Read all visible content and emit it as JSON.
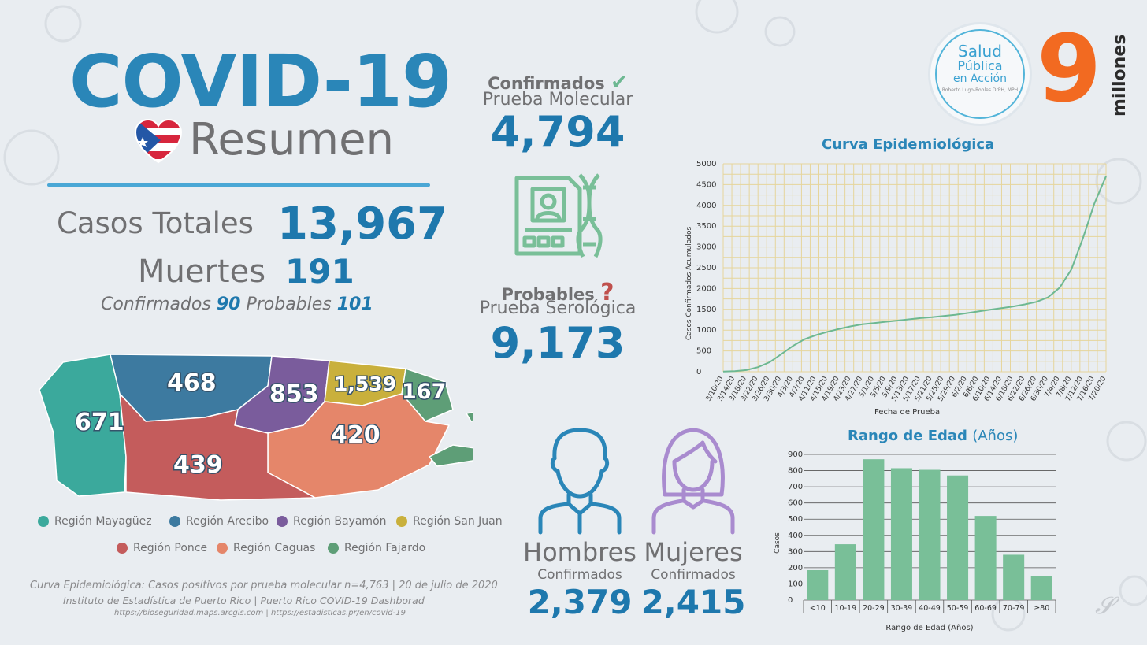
{
  "header": {
    "title": "COVID-19",
    "subtitle": "Resumen"
  },
  "totals": {
    "casos_label": "Casos Totales",
    "casos_value": "13,967",
    "muertes_label": "Muertes",
    "muertes_value": "191",
    "confirmados_label": "Confirmados",
    "confirmados_value": "90",
    "probables_label": "Probables",
    "probables_value": "101"
  },
  "molecular": {
    "label": "Confirmados",
    "test": "Prueba Molecular",
    "value": "4,794",
    "icon": "check-icon"
  },
  "serologica": {
    "label": "Probables",
    "test": "Prueba Serológica",
    "value": "9,173",
    "icon": "question-icon"
  },
  "gender": {
    "men": {
      "title": "Hombres",
      "sub": "Confirmados",
      "value": "2,379",
      "color": "#2a86b8"
    },
    "women": {
      "title": "Mujeres",
      "sub": "Confirmados",
      "value": "2,415",
      "color": "#a98bcf"
    }
  },
  "map": {
    "regions": [
      {
        "name": "Región Mayagüez",
        "value": "671",
        "color": "#3ba99c"
      },
      {
        "name": "Región Arecibo",
        "value": "468",
        "color": "#3d7aa0"
      },
      {
        "name": "Región Bayamón",
        "value": "853",
        "color": "#7a5c9c"
      },
      {
        "name": "Región San Juan",
        "value": "1,539",
        "color": "#c9b03c"
      },
      {
        "name": "Región Ponce",
        "value": "439",
        "color": "#c45c5c"
      },
      {
        "name": "Región Caguas",
        "value": "420",
        "color": "#e5866a"
      },
      {
        "name": "Región Fajardo",
        "value": "167",
        "color": "#5e9e77"
      }
    ]
  },
  "footer": {
    "line1": "Curva Epidemiológica: Casos positivos por prueba molecular n=4,763 | 20 de julio de 2020",
    "line2": "Instituto de Estadística de Puerto Rico | Puerto Rico COVID-19 Dashborad",
    "line3": "https://bioseguridad.maps.arcgis.com | https://estadisticas.pr/en/covid-19"
  },
  "logo": {
    "l1": "Salud",
    "l2": "Pública",
    "l3": "en Acción",
    "l4": "Roberto Lugo-Robles DrPH, MPH",
    "number": "9",
    "word": "millones"
  },
  "chart_data": [
    {
      "type": "line",
      "title": "Curva Epidemiológica",
      "xlabel": "Fecha de Prueba",
      "ylabel": "Casos Confirmados Acumulados",
      "ylim": [
        0,
        5000
      ],
      "yticks": [
        0,
        500,
        1000,
        1500,
        2000,
        2500,
        3000,
        3500,
        4000,
        4500,
        5000
      ],
      "grid": true,
      "line_color": "#6db892",
      "x": [
        "3/10/20",
        "3/14/20",
        "3/18/20",
        "3/22/20",
        "3/26/20",
        "3/30/20",
        "4/3/20",
        "4/7/20",
        "4/11/20",
        "4/15/20",
        "4/19/20",
        "4/23/20",
        "4/27/20",
        "5/1/20",
        "5/5/20",
        "5/9/20",
        "5/13/20",
        "5/17/20",
        "5/21/20",
        "5/25/20",
        "5/29/20",
        "6/2/20",
        "6/6/20",
        "6/10/20",
        "6/14/20",
        "6/18/20",
        "6/22/20",
        "6/26/20",
        "6/30/20",
        "7/4/20",
        "7/8/20",
        "7/12/20",
        "7/16/20",
        "7/20/20"
      ],
      "values": [
        5,
        15,
        40,
        110,
        230,
        420,
        620,
        780,
        880,
        960,
        1030,
        1090,
        1140,
        1170,
        1200,
        1230,
        1260,
        1290,
        1310,
        1340,
        1370,
        1410,
        1450,
        1490,
        1530,
        1570,
        1620,
        1680,
        1790,
        2020,
        2450,
        3200,
        4050,
        4700
      ]
    },
    {
      "type": "bar",
      "title": "Rango de Edad",
      "title_suffix": "(Años)",
      "xlabel": "Rango de Edad (Años)",
      "ylabel": "Casos",
      "ylim": [
        0,
        900
      ],
      "yticks": [
        0,
        100,
        200,
        300,
        400,
        500,
        600,
        700,
        800,
        900
      ],
      "bar_color": "#79bf98",
      "categories": [
        "<10",
        "10-19",
        "20-29",
        "30-39",
        "40-49",
        "50-59",
        "60-69",
        "70-79",
        "≥80"
      ],
      "values": [
        185,
        345,
        870,
        815,
        805,
        770,
        520,
        280,
        150
      ]
    }
  ]
}
